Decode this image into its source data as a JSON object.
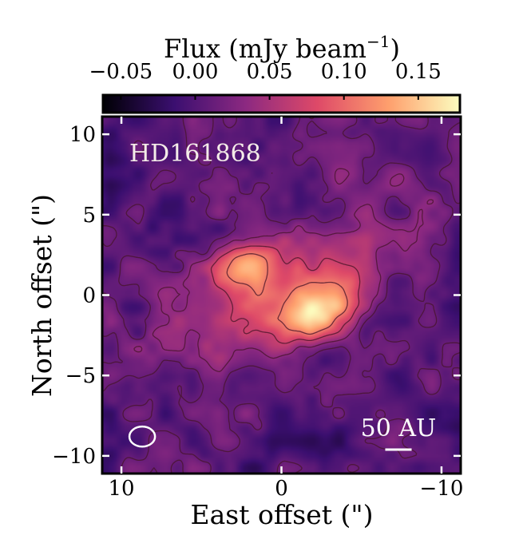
{
  "chart_data": {
    "type": "heatmap",
    "title": "HD161868",
    "xlabel": "East offset (\")",
    "ylabel": "North offset (\")",
    "xlim": [
      11.2,
      -11.2
    ],
    "ylim": [
      -11.1,
      11.1
    ],
    "x_ticks": [
      10,
      0,
      -10
    ],
    "x_tick_labels": [
      "10",
      "0",
      "−10"
    ],
    "y_ticks": [
      10,
      5,
      0,
      -5,
      -10
    ],
    "y_tick_labels": [
      "10",
      "5",
      "0",
      "−5",
      "−10"
    ],
    "colorbar": {
      "label_main": "Flux (mJy beam",
      "label_exp": "−1",
      "label_close": ")",
      "min": -0.062,
      "max": 0.178,
      "ticks": [
        -0.05,
        0.0,
        0.05,
        0.1,
        0.15
      ],
      "tick_labels": [
        "−0.05",
        "0.00",
        "0.05",
        "0.10",
        "0.15"
      ],
      "colormap": "inferno",
      "colors": [
        "#000004",
        "#3b0f70",
        "#8c2981",
        "#de4968",
        "#fe9f6d",
        "#fcfdbf"
      ]
    },
    "annotations": {
      "target": "HD161868",
      "scalebar_label": "50 AU",
      "scalebar_length_arcsec": 1.65,
      "beam": {
        "x": 8.7,
        "y": -8.8,
        "major_arcsec": 1.6,
        "minor_arcsec": 1.25
      }
    },
    "emission_components": [
      {
        "x": -2.0,
        "y": -1.1,
        "sx": 2.0,
        "sy": 1.1,
        "pa_deg": -27,
        "amp": 0.125
      },
      {
        "x": 2.3,
        "y": 1.9,
        "sx": 1.5,
        "sy": 0.95,
        "pa_deg": -27,
        "amp": 0.085
      },
      {
        "x": 0.0,
        "y": 0.4,
        "sx": 2.4,
        "sy": 1.4,
        "pa_deg": -27,
        "amp": 0.05
      },
      {
        "x": 0.2,
        "y": 0.2,
        "sx": 5.8,
        "sy": 2.4,
        "pa_deg": -27,
        "amp": 0.035
      },
      {
        "x": 0.5,
        "y": 0.5,
        "sx": 9.0,
        "sy": 4.2,
        "pa_deg": -27,
        "amp": 0.012
      }
    ],
    "contour_levels": [
      0.012,
      0.035,
      0.07,
      0.11
    ],
    "negative_contour_level": -0.04
  }
}
